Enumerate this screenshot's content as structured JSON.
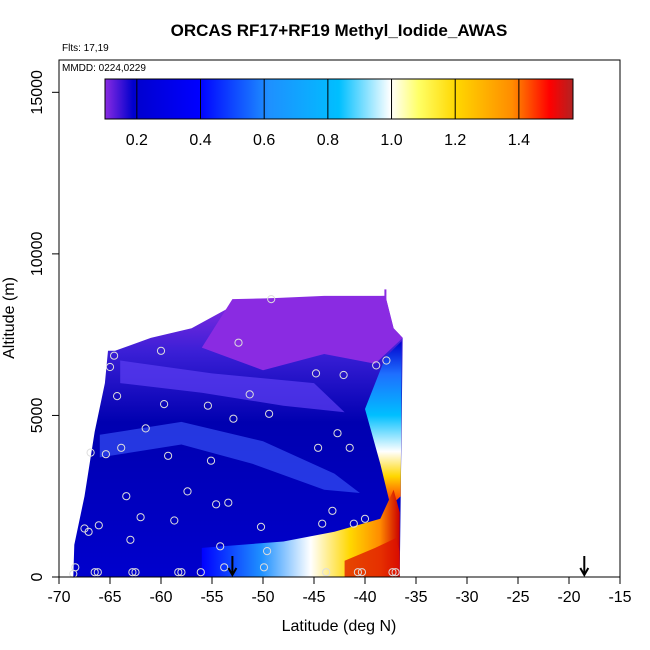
{
  "chart_data": {
    "type": "heatmap",
    "title": "ORCAS RF17+RF19 Methyl_Iodide_AWAS",
    "flights_note": "Flts: 17,19",
    "date_note": "MMDD: 0224,0229",
    "xlabel": "Latitude (deg N)",
    "ylabel": "Altitude (m)",
    "xlim": [
      -70,
      -15
    ],
    "ylim": [
      0,
      16000
    ],
    "x_ticks": [
      -70,
      -65,
      -60,
      -55,
      -50,
      -45,
      -40,
      -35,
      -30,
      -25,
      -20,
      -15
    ],
    "y_ticks": [
      0,
      5000,
      10000,
      15000
    ],
    "colorbar": {
      "range": [
        0.1,
        1.57
      ],
      "ticks": [
        0.2,
        0.4,
        0.6,
        0.8,
        1.0,
        1.2,
        1.4
      ],
      "tick_labels": [
        "0.2",
        "0.4",
        "0.6",
        "0.8",
        "1.0",
        "1.2",
        "1.4"
      ],
      "colors": [
        "#8a2be2",
        "#0000cd",
        "#0000ff",
        "#1e90ff",
        "#00bfff",
        "#ffffff",
        "#ffff66",
        "#ffd700",
        "#ff8c00",
        "#ff0000",
        "#b22222"
      ]
    },
    "samples": [
      {
        "lat": -68.6,
        "alt": 100
      },
      {
        "lat": -68.4,
        "alt": 300
      },
      {
        "lat": -67.5,
        "alt": 1500
      },
      {
        "lat": -67.1,
        "alt": 1400
      },
      {
        "lat": -66.9,
        "alt": 3850
      },
      {
        "lat": -66.5,
        "alt": 150
      },
      {
        "lat": -66.2,
        "alt": 150
      },
      {
        "lat": -66.1,
        "alt": 1600
      },
      {
        "lat": -65.4,
        "alt": 3800
      },
      {
        "lat": -65.0,
        "alt": 6500
      },
      {
        "lat": -64.6,
        "alt": 6850
      },
      {
        "lat": -64.3,
        "alt": 5600
      },
      {
        "lat": -63.9,
        "alt": 4000
      },
      {
        "lat": -63.4,
        "alt": 2500
      },
      {
        "lat": -63.0,
        "alt": 1150
      },
      {
        "lat": -62.8,
        "alt": 150
      },
      {
        "lat": -62.5,
        "alt": 150
      },
      {
        "lat": -62.0,
        "alt": 1850
      },
      {
        "lat": -61.5,
        "alt": 4600
      },
      {
        "lat": -60.0,
        "alt": 7000
      },
      {
        "lat": -59.7,
        "alt": 5350
      },
      {
        "lat": -59.3,
        "alt": 3750
      },
      {
        "lat": -58.7,
        "alt": 1750
      },
      {
        "lat": -58.3,
        "alt": 150
      },
      {
        "lat": -58.0,
        "alt": 150
      },
      {
        "lat": -57.4,
        "alt": 2650
      },
      {
        "lat": -56.1,
        "alt": 150
      },
      {
        "lat": -55.4,
        "alt": 5300
      },
      {
        "lat": -55.1,
        "alt": 3600
      },
      {
        "lat": -54.6,
        "alt": 2250
      },
      {
        "lat": -54.2,
        "alt": 950
      },
      {
        "lat": -53.8,
        "alt": 300
      },
      {
        "lat": -53.4,
        "alt": 2300
      },
      {
        "lat": -52.9,
        "alt": 4900
      },
      {
        "lat": -52.4,
        "alt": 7250
      },
      {
        "lat": -51.3,
        "alt": 5650
      },
      {
        "lat": -50.2,
        "alt": 1550
      },
      {
        "lat": -49.9,
        "alt": 300
      },
      {
        "lat": -49.6,
        "alt": 800
      },
      {
        "lat": -49.4,
        "alt": 5050
      },
      {
        "lat": -49.2,
        "alt": 8600
      },
      {
        "lat": -44.8,
        "alt": 6300
      },
      {
        "lat": -44.6,
        "alt": 4000
      },
      {
        "lat": -44.2,
        "alt": 1650
      },
      {
        "lat": -43.8,
        "alt": 150
      },
      {
        "lat": -43.2,
        "alt": 2050
      },
      {
        "lat": -42.7,
        "alt": 4450
      },
      {
        "lat": -42.1,
        "alt": 6250
      },
      {
        "lat": -41.5,
        "alt": 4000
      },
      {
        "lat": -41.1,
        "alt": 1650
      },
      {
        "lat": -40.7,
        "alt": 150
      },
      {
        "lat": -40.3,
        "alt": 150
      },
      {
        "lat": -40.0,
        "alt": 1800
      },
      {
        "lat": -38.9,
        "alt": 6550
      },
      {
        "lat": -37.9,
        "alt": 6700
      },
      {
        "lat": -37.3,
        "alt": 150
      },
      {
        "lat": -37.0,
        "alt": 150
      }
    ],
    "markers": [
      {
        "lat": -53.0,
        "label": "↓"
      },
      {
        "lat": -18.5,
        "label": "↓"
      }
    ]
  }
}
